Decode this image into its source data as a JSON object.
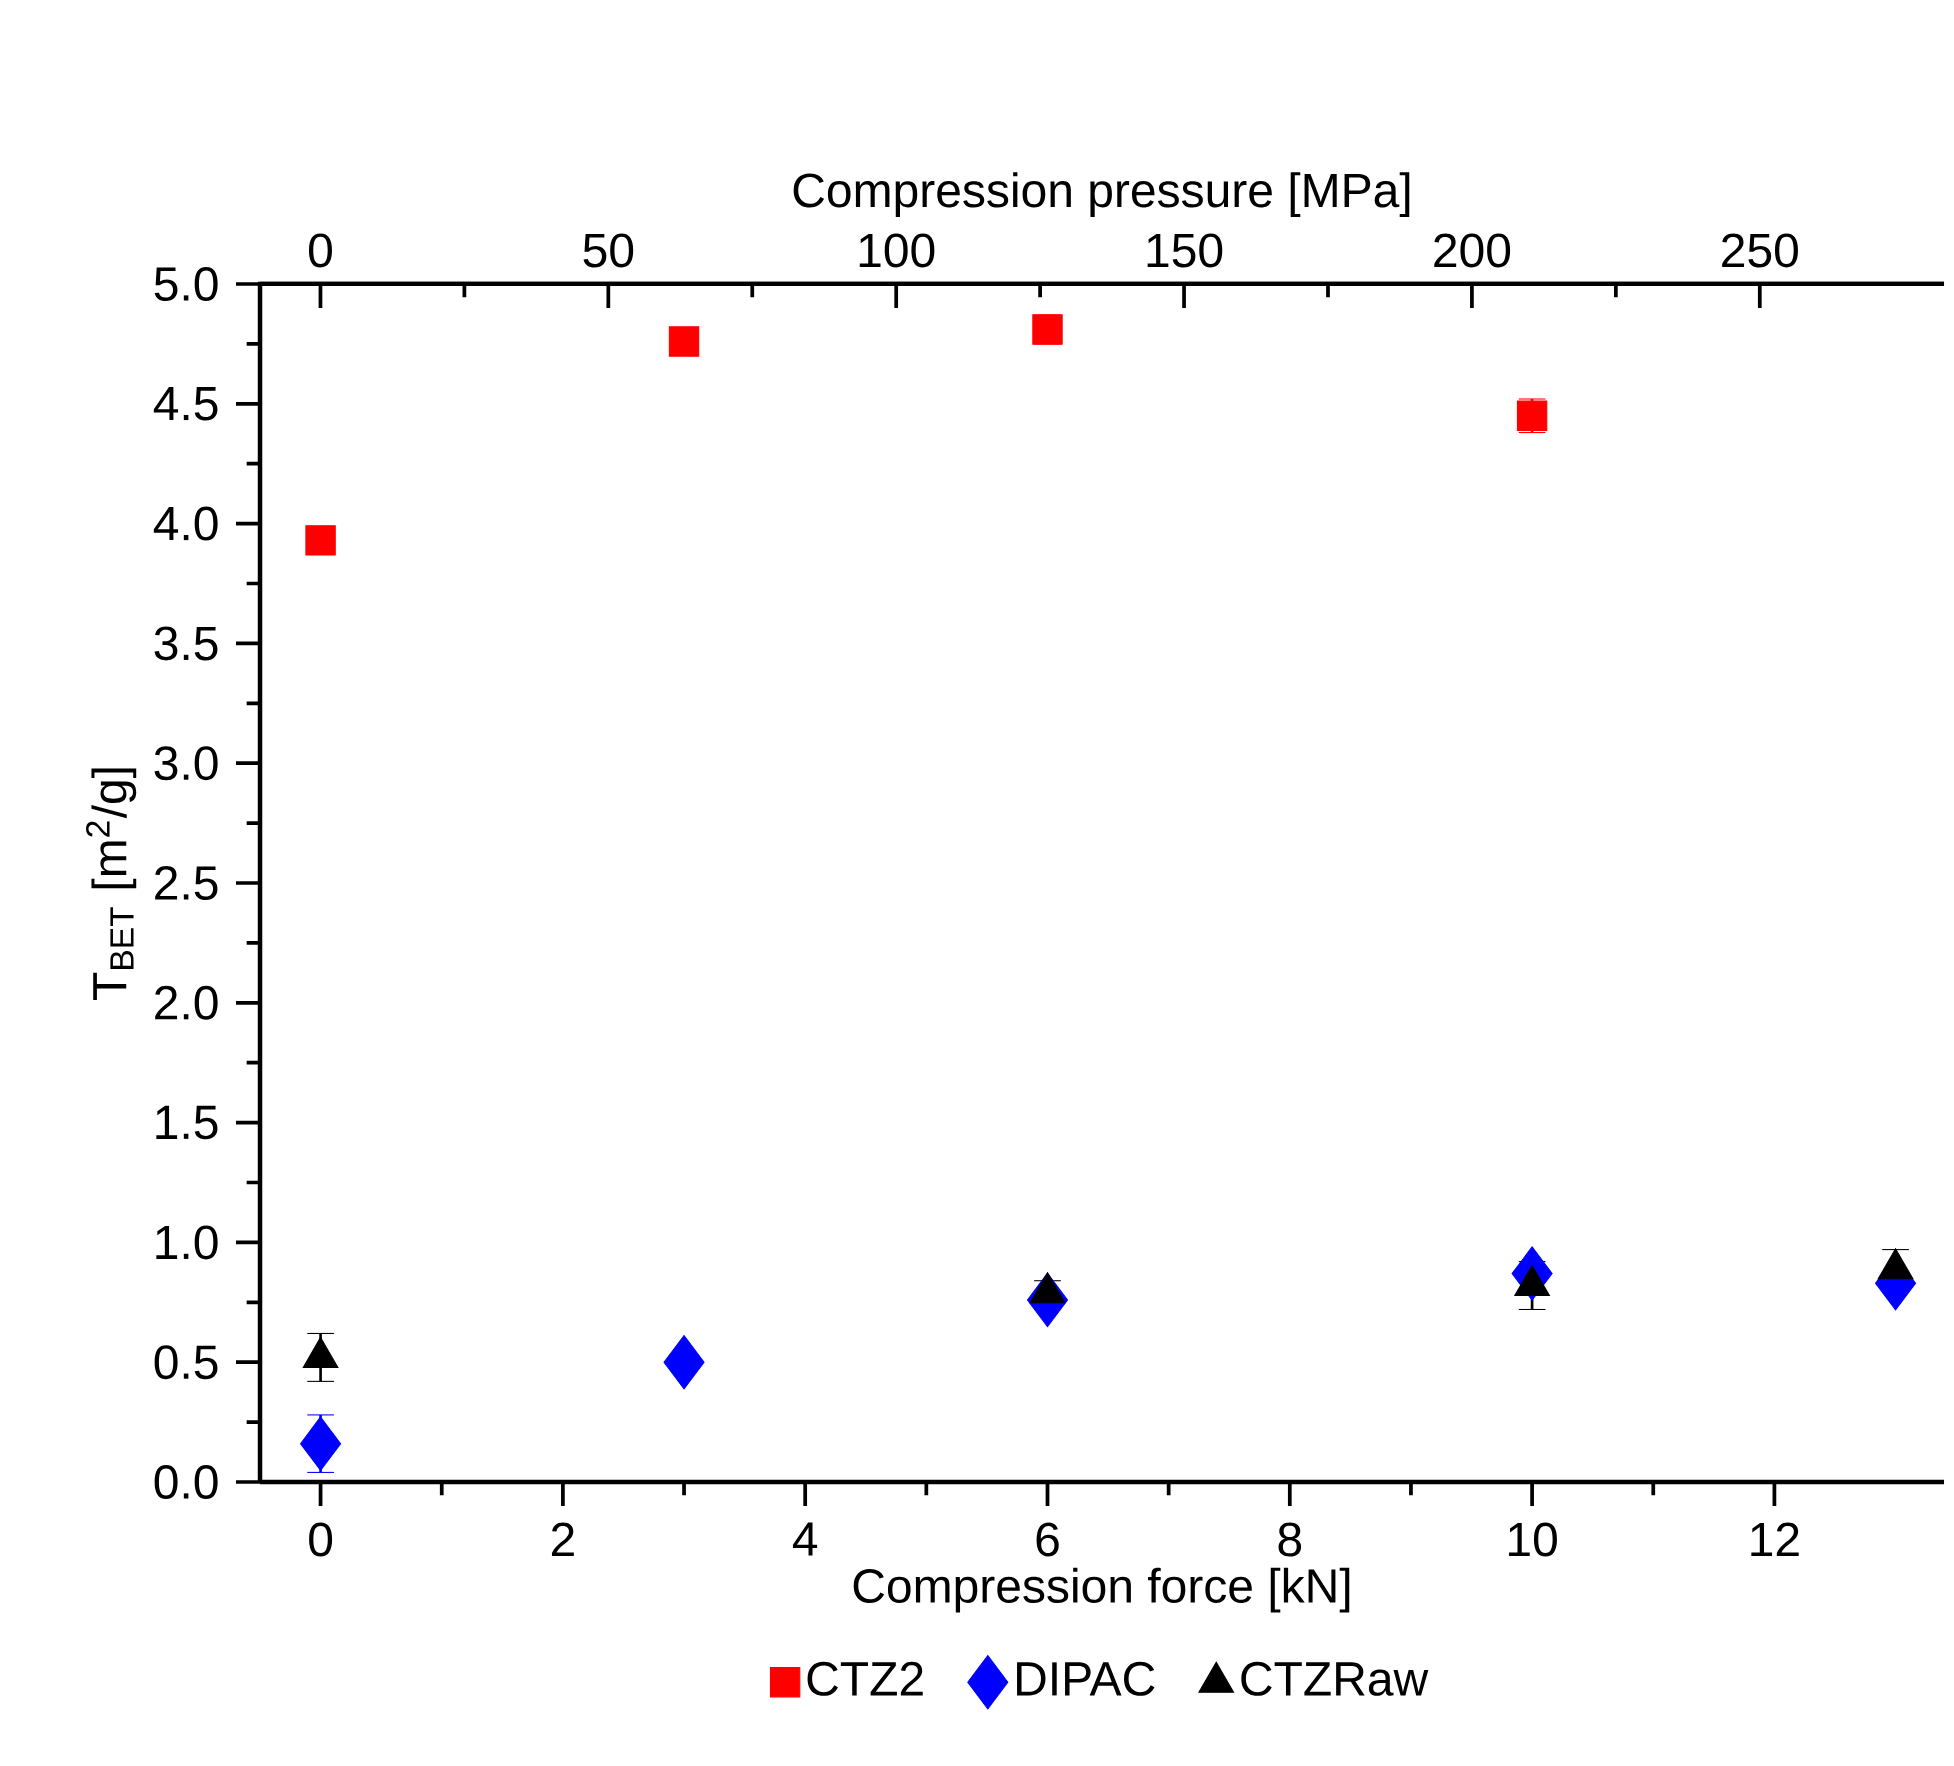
{
  "chart_data": {
    "type": "scatter",
    "xlabel": "Compression force [kN]",
    "ylabel": "T$_{BET}$ [m$^{2}$/g]",
    "x2label": "Compression pressure [MPa]",
    "xlim": [
      -0.5,
      13.4
    ],
    "xticks": [
      0,
      2,
      4,
      6,
      8,
      10,
      12
    ],
    "x2lim": [
      -10.5,
      282
    ],
    "x2ticks": [
      0,
      50,
      100,
      150,
      200,
      250
    ],
    "ylim": [
      0,
      5
    ],
    "yticks": [
      {
        "value": 0,
        "label": "0.0"
      },
      0.5,
      {
        "value": 1,
        "label": "1.0"
      },
      1.5,
      {
        "value": 2,
        "label": "2.0"
      },
      2.5,
      {
        "value": 3,
        "label": "3.0"
      },
      3.5,
      {
        "value": 4,
        "label": "4.0"
      },
      4.5,
      {
        "value": 5,
        "label": "5.0"
      }
    ],
    "grid": false,
    "legend": "bottom",
    "series": [
      {
        "name": "CTZ2",
        "color": "#ff0000",
        "marker": "square",
        "x": [
          0,
          3,
          6,
          10
        ],
        "values": [
          3.93,
          4.76,
          4.81,
          4.45
        ],
        "errors": [
          0.05,
          0.05,
          0.06,
          0.07
        ]
      },
      {
        "name": "DIPAC",
        "color": "#0000ff",
        "marker": "diamond",
        "x": [
          0,
          3,
          6,
          10,
          13
        ],
        "values": [
          0.16,
          0.5,
          0.76,
          0.87,
          0.83
        ],
        "errors": [
          0.12,
          null,
          0.03,
          null,
          0.03
        ]
      },
      {
        "name": "CTZRaw",
        "color": "#000000",
        "marker": "triangle",
        "x": [
          0,
          6,
          10,
          13
        ],
        "values": [
          0.52,
          0.79,
          0.82,
          0.89
        ],
        "errors": [
          0.1,
          0.05,
          0.1,
          0.08
        ]
      }
    ]
  }
}
